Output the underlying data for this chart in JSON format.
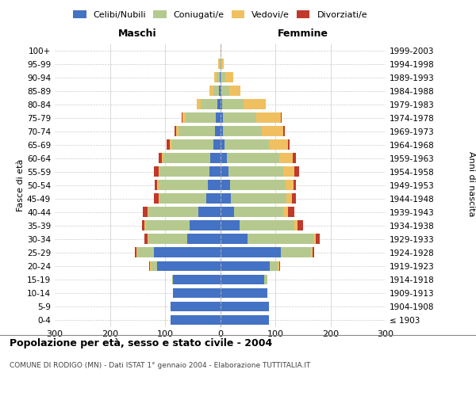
{
  "age_groups": [
    "100+",
    "95-99",
    "90-94",
    "85-89",
    "80-84",
    "75-79",
    "70-74",
    "65-69",
    "60-64",
    "55-59",
    "50-54",
    "45-49",
    "40-44",
    "35-39",
    "30-34",
    "25-29",
    "20-24",
    "15-19",
    "10-14",
    "5-9",
    "0-4"
  ],
  "birth_years": [
    "≤ 1903",
    "1904-1908",
    "1909-1913",
    "1914-1918",
    "1919-1923",
    "1924-1928",
    "1929-1933",
    "1934-1938",
    "1939-1943",
    "1944-1948",
    "1949-1953",
    "1954-1958",
    "1959-1963",
    "1964-1968",
    "1969-1973",
    "1974-1978",
    "1979-1983",
    "1984-1988",
    "1989-1993",
    "1994-1998",
    "1999-2003"
  ],
  "colors": {
    "celibi": "#4472C4",
    "coniugati": "#b5c98e",
    "vedovi": "#f0c060",
    "divorziati": "#c0392b"
  },
  "males": {
    "celibi": [
      0,
      0,
      1,
      2,
      5,
      8,
      10,
      12,
      18,
      20,
      22,
      25,
      40,
      55,
      60,
      120,
      115,
      85,
      85,
      90,
      90
    ],
    "coniugati": [
      0,
      2,
      5,
      10,
      30,
      55,
      65,
      75,
      85,
      90,
      90,
      85,
      90,
      80,
      70,
      30,
      10,
      2,
      0,
      0,
      0
    ],
    "vedovi": [
      0,
      2,
      5,
      8,
      8,
      5,
      5,
      5,
      3,
      2,
      2,
      2,
      2,
      2,
      2,
      2,
      2,
      0,
      0,
      0,
      0
    ],
    "divorziati": [
      0,
      0,
      0,
      0,
      0,
      2,
      3,
      5,
      5,
      8,
      5,
      8,
      8,
      5,
      5,
      2,
      2,
      0,
      0,
      0,
      0
    ]
  },
  "females": {
    "celibi": [
      0,
      0,
      1,
      2,
      3,
      5,
      5,
      8,
      12,
      15,
      18,
      20,
      25,
      35,
      50,
      110,
      90,
      80,
      85,
      88,
      88
    ],
    "coniugati": [
      0,
      2,
      8,
      15,
      40,
      60,
      70,
      80,
      95,
      100,
      100,
      100,
      90,
      100,
      120,
      55,
      15,
      5,
      0,
      0,
      0
    ],
    "vedovi": [
      2,
      5,
      15,
      20,
      40,
      45,
      40,
      35,
      25,
      20,
      15,
      10,
      8,
      5,
      3,
      2,
      2,
      0,
      0,
      0,
      0
    ],
    "divorziati": [
      0,
      0,
      0,
      0,
      0,
      2,
      2,
      3,
      5,
      8,
      5,
      8,
      12,
      10,
      8,
      3,
      2,
      0,
      0,
      0,
      0
    ]
  },
  "title": "Popolazione per età, sesso e stato civile - 2004",
  "subtitle": "COMUNE DI RODIGO (MN) - Dati ISTAT 1° gennaio 2004 - Elaborazione TUTTITALIA.IT",
  "ylabel_left": "Fasce di età",
  "ylabel_right": "Anni di nascita",
  "xlabel_left": "Maschi",
  "xlabel_right": "Femmine",
  "xlim": 300,
  "background_color": "#ffffff",
  "grid_color": "#cccccc"
}
